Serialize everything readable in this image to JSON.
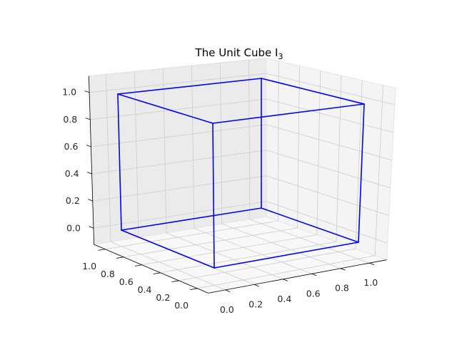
{
  "chart_data": {
    "type": "3d-wireframe",
    "title": "The Unit Cube I",
    "title_subscript": "3",
    "title_style": "italic I with subscript 3",
    "axes": {
      "x": {
        "range": [
          0,
          1
        ],
        "ticks": [
          "0.0",
          "0.2",
          "0.4",
          "0.6",
          "0.8",
          "1.0"
        ]
      },
      "y": {
        "range": [
          0,
          1
        ],
        "ticks": [
          "0.0",
          "0.2",
          "0.4",
          "0.6",
          "0.8",
          "1.0"
        ]
      },
      "z": {
        "range": [
          0,
          1
        ],
        "ticks": [
          "0.0",
          "0.2",
          "0.4",
          "0.6",
          "0.8",
          "1.0"
        ]
      }
    },
    "grid": true,
    "series": [
      {
        "color": "#0000ff",
        "vertices": [
          [
            0,
            0,
            0
          ],
          [
            1,
            0,
            0
          ],
          [
            1,
            1,
            0
          ],
          [
            0,
            1,
            0
          ],
          [
            0,
            0,
            1
          ],
          [
            1,
            0,
            1
          ],
          [
            1,
            1,
            1
          ],
          [
            0,
            1,
            1
          ]
        ],
        "edges": [
          [
            0,
            1
          ],
          [
            1,
            2
          ],
          [
            2,
            3
          ],
          [
            3,
            0
          ],
          [
            4,
            5
          ],
          [
            5,
            6
          ],
          [
            6,
            7
          ],
          [
            7,
            4
          ],
          [
            0,
            4
          ],
          [
            1,
            5
          ],
          [
            2,
            6
          ],
          [
            3,
            7
          ]
        ]
      }
    ]
  },
  "colors": {
    "cube_edges": "#0000ff",
    "pane_left": "#ebebeb",
    "pane_right": "#f4f4f4",
    "pane_floor": "#f8f8f8",
    "grid": "#cccccc",
    "axis_line": "#000000",
    "text": "#262626"
  }
}
